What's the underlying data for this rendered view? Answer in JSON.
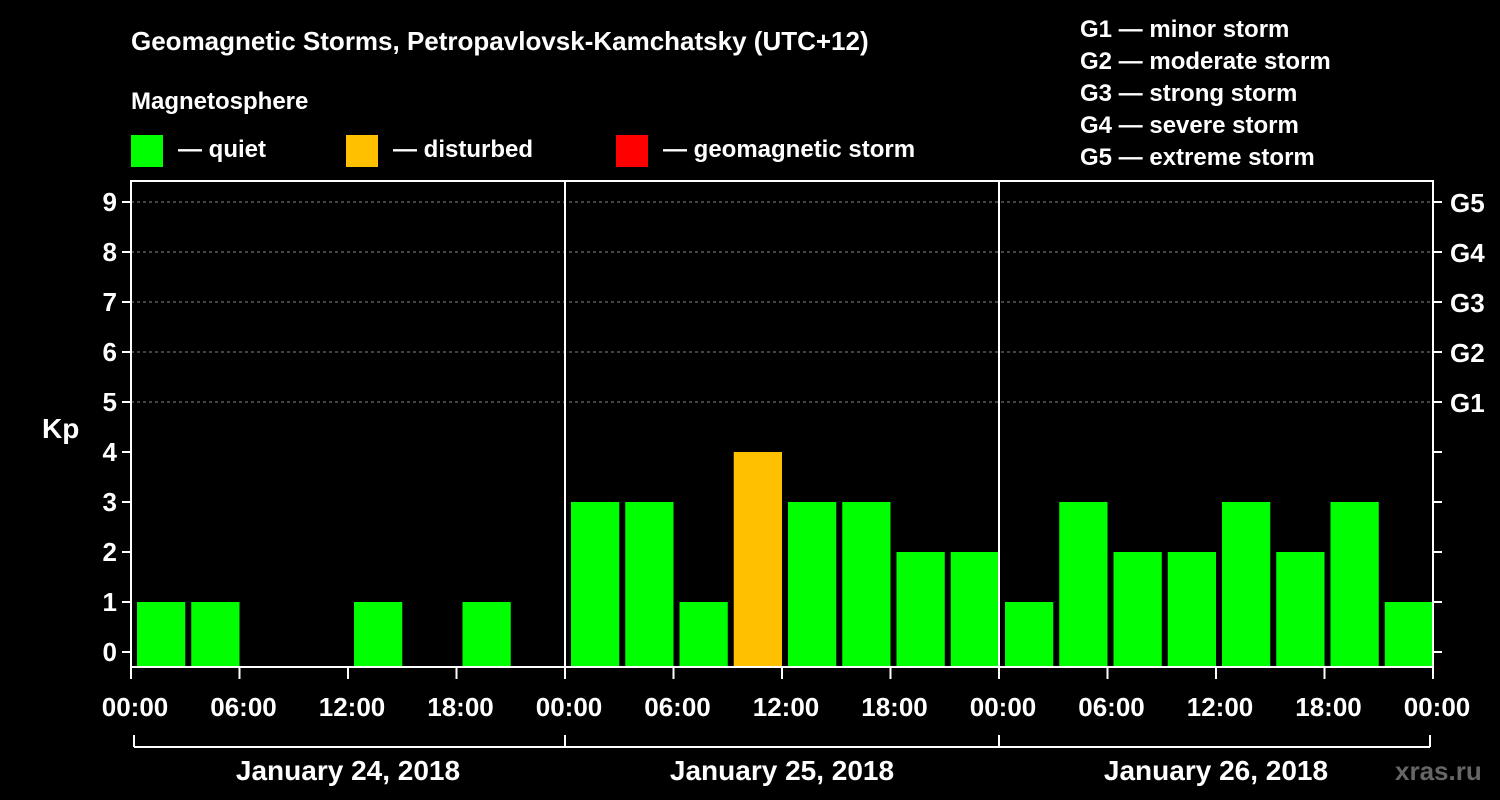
{
  "title": "Geomagnetic Storms, Petropavlovsk-Kamchatsky (UTC+12)",
  "magnetosphere_label": "Magnetosphere",
  "legend": [
    {
      "label": "— quiet",
      "color": "#00ff00"
    },
    {
      "label": "— disturbed",
      "color": "#ffc000"
    },
    {
      "label": "— geomagnetic storm",
      "color": "#ff0000"
    }
  ],
  "storm_scale": [
    "G1 — minor storm",
    "G2 — moderate storm",
    "G3 — strong storm",
    "G4 — severe storm",
    "G5 — extreme storm"
  ],
  "watermark": "xras.ru",
  "chart_data": {
    "type": "bar",
    "ylabel": "Kp",
    "ylim": [
      0,
      9
    ],
    "yticks": [
      0,
      1,
      2,
      3,
      4,
      5,
      6,
      7,
      8,
      9
    ],
    "g_levels": [
      {
        "kp": 5,
        "label": "G1"
      },
      {
        "kp": 6,
        "label": "G2"
      },
      {
        "kp": 7,
        "label": "G3"
      },
      {
        "kp": 8,
        "label": "G4"
      },
      {
        "kp": 9,
        "label": "G5"
      }
    ],
    "x_tick_labels": [
      "00:00",
      "06:00",
      "12:00",
      "18:00",
      "00:00",
      "06:00",
      "12:00",
      "18:00",
      "00:00",
      "06:00",
      "12:00",
      "18:00",
      "00:00"
    ],
    "days": [
      "January 24, 2018",
      "January 25, 2018",
      "January 26, 2018"
    ],
    "interval_hours": 3,
    "values": [
      1,
      1,
      0,
      0,
      1,
      0,
      1,
      0,
      3,
      3,
      1,
      4,
      3,
      3,
      2,
      2,
      1,
      3,
      2,
      2,
      3,
      2,
      3,
      1
    ],
    "status": [
      "quiet",
      "quiet",
      "quiet",
      "quiet",
      "quiet",
      "quiet",
      "quiet",
      "quiet",
      "quiet",
      "quiet",
      "quiet",
      "disturbed",
      "quiet",
      "quiet",
      "quiet",
      "quiet",
      "quiet",
      "quiet",
      "quiet",
      "quiet",
      "quiet",
      "quiet",
      "quiet",
      "quiet"
    ],
    "status_colors": {
      "quiet": "#00ff00",
      "disturbed": "#ffc000",
      "storm": "#ff0000"
    },
    "grid": true
  }
}
